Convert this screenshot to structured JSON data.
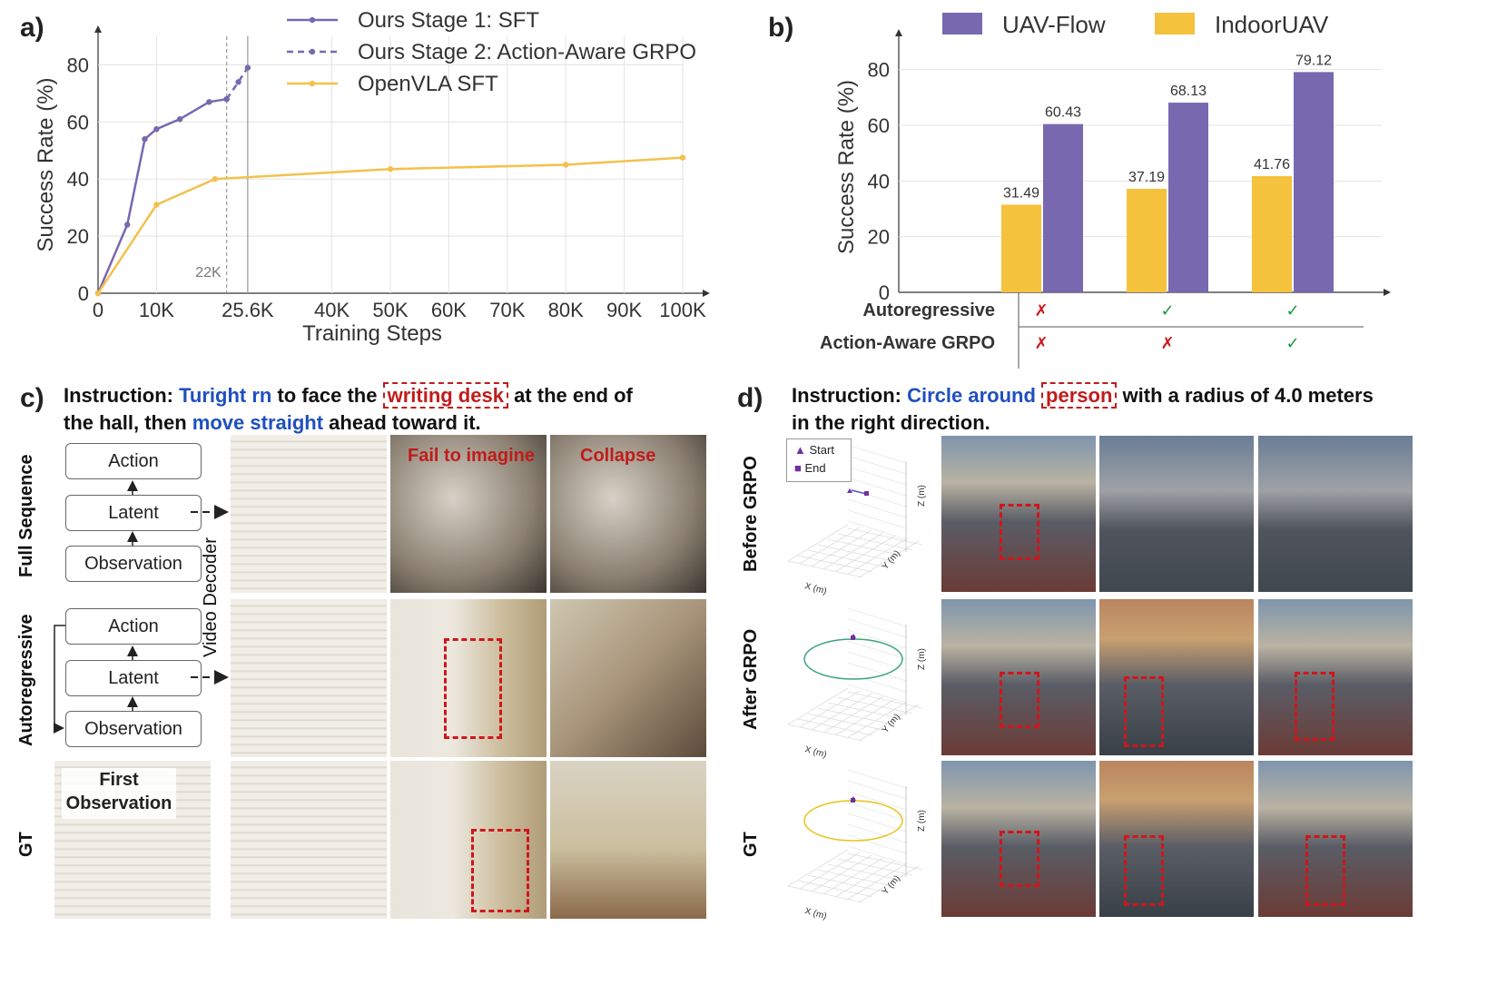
{
  "panel_labels": {
    "a": "a)",
    "b": "b)",
    "c": "c)",
    "d": "d)"
  },
  "chart_data": [
    {
      "type": "line",
      "xlabel": "Training Steps",
      "ylabel": "Success Rate (%)",
      "xlim": [
        0,
        100000
      ],
      "ylim": [
        0,
        90
      ],
      "xticks": [
        0,
        10000,
        25600,
        40000,
        50000,
        60000,
        70000,
        80000,
        90000,
        100000
      ],
      "xtick_labels": [
        "0",
        "10K",
        "25.6K",
        "40K",
        "50K",
        "60K",
        "70K",
        "80K",
        "90K",
        "100K"
      ],
      "yticks": [
        0,
        20,
        40,
        60,
        80
      ],
      "annotation": "22K",
      "annotation_x": 22000,
      "legend_position": "top",
      "colors": {
        "ours": "#7868b0",
        "openvla": "#f2c14e",
        "vline": "#999999"
      },
      "series": [
        {
          "name": "Ours Stage 1: SFT",
          "style": "solid",
          "color": "#7868b0",
          "x": [
            0,
            5000,
            8000,
            10000,
            14000,
            19000,
            22000
          ],
          "y": [
            0,
            24,
            54,
            57.5,
            61,
            67,
            68
          ]
        },
        {
          "name": "Ours Stage 2: Action-Aware GRPO",
          "style": "dashed",
          "color": "#7868b0",
          "x": [
            22000,
            24000,
            25600
          ],
          "y": [
            68,
            74,
            79
          ]
        },
        {
          "name": "OpenVLA SFT",
          "style": "solid",
          "color": "#f2c14e",
          "x": [
            0,
            10000,
            20000,
            50000,
            80000,
            100000
          ],
          "y": [
            0,
            31,
            40,
            43.5,
            45,
            47.5
          ]
        }
      ]
    },
    {
      "type": "bar",
      "ylabel": "Success Rate (%)",
      "ylim": [
        0,
        90
      ],
      "yticks": [
        0,
        20,
        40,
        60,
        80
      ],
      "legend_position": "top",
      "series": [
        {
          "name": "UAV-Flow",
          "color": "#7868b0",
          "values": [
            60.43,
            68.13,
            79.12
          ]
        },
        {
          "name": "IndoorUAV",
          "color": "#f5c23d",
          "values": [
            31.49,
            37.19,
            41.76
          ]
        }
      ],
      "table": {
        "rows": [
          {
            "label": "Autoregressive",
            "marks": [
              "✗",
              "✓",
              "✓"
            ]
          },
          {
            "label": "Action-Aware GRPO",
            "marks": [
              "✗",
              "✗",
              "✓"
            ]
          }
        ],
        "colors": {
          "cross": "#d0161b",
          "check": "#1a9a3a"
        }
      }
    }
  ],
  "panel_c": {
    "instr_prefix": "Instruction: ",
    "instr_a": "Turight rn",
    "instr_b": " to face the ",
    "instr_target": "writing desk",
    "instr_c": " at the end of",
    "instr_line2_a": "the hall, then ",
    "instr_line2_b": "move straight",
    "instr_line2_c": " ahead toward it.",
    "row_full": "Full Sequence",
    "row_auto": "Autoregressive",
    "row_gt": "GT",
    "box_action": "Action",
    "box_latent": "Latent",
    "box_obs": "Observation",
    "video_decoder": "Video Decoder",
    "first_obs_1": "First",
    "first_obs_2": "Observation",
    "fail": "Fail to imagine",
    "collapse": "Collapse"
  },
  "panel_d": {
    "instr_prefix": "Instruction: ",
    "instr_a": "Circle around",
    "instr_target": "person",
    "instr_b": " with a radius of 4.0 meters",
    "instr_line2": "in the right direction.",
    "row_before": "Before GRPO",
    "row_after": "After GRPO",
    "row_gt": "GT",
    "legend_start": "Start",
    "legend_end": "End",
    "axis_x": "X (m)",
    "axis_y": "Y (m)",
    "axis_z": "Z (m)",
    "traj_colors": {
      "before": "#5a4fcf",
      "after": "#3aa57a",
      "gt": "#e8c21a",
      "marker": "#7030a0"
    }
  }
}
